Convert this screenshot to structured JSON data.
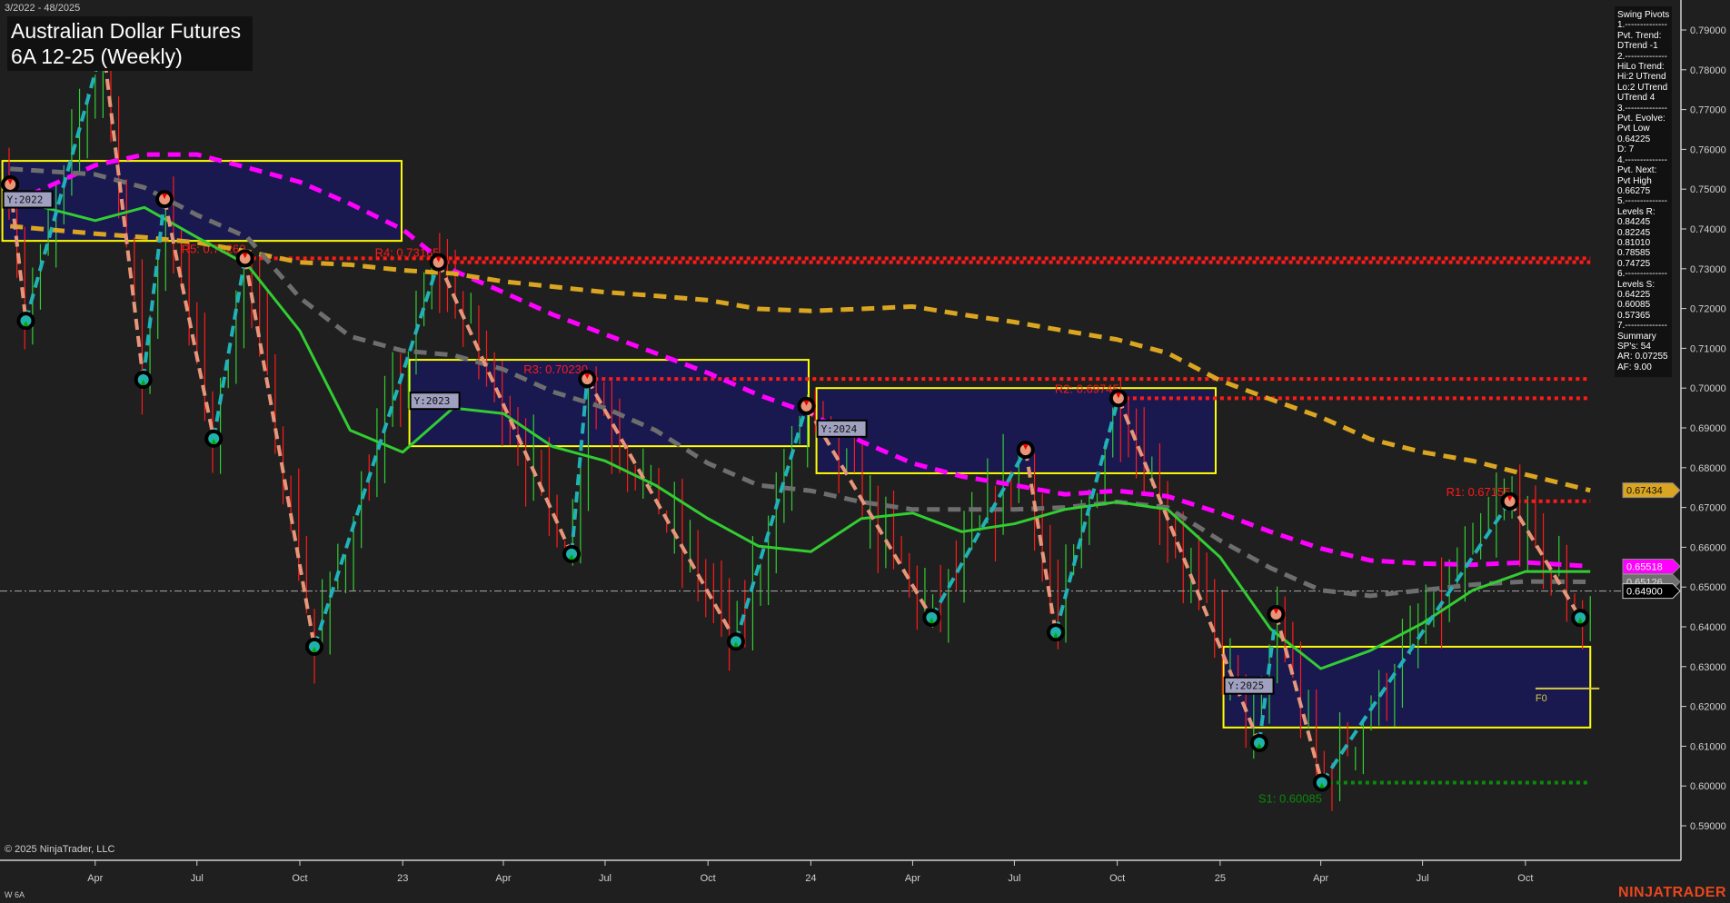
{
  "header": {
    "date_range": "3/2022 - 48/2025",
    "title_line1": "Australian Dollar Futures",
    "title_line2": "6A 12-25 (Weekly)"
  },
  "footer": {
    "copyright": "© 2025 NinjaTrader, LLC",
    "symbol": "W 6A",
    "logo": "NINJATRADER"
  },
  "info_panel": {
    "lines": [
      "Swing Pivots",
      "1.--------------",
      "Pvt. Trend:",
      "DTrend -1",
      "2.--------------",
      "HiLo Trend:",
      "Hi:2 UTrend",
      "Lo:2 UTrend",
      "UTrend 4",
      "3.--------------",
      "Pvt. Evolve:",
      "Pvt Low",
      "0.64225",
      "D: 7",
      "4.--------------",
      "Pvt. Next:",
      "Pvt High",
      "0.66275",
      "5.--------------",
      "Levels R:",
      "0.84245",
      "0.82245",
      "0.81010",
      "0.78585",
      "0.74725",
      "6.--------------",
      "Levels S:",
      "0.64225",
      "0.60085",
      "0.57365",
      "7.--------------",
      "Summary",
      "SP's: 54",
      "AR: 0.07255",
      "AF: 9.00"
    ]
  },
  "chart_data": {
    "type": "candlestick",
    "ylim": [
      0.584,
      0.7948
    ],
    "y_ticks": [
      "0.79000",
      "0.78000",
      "0.77000",
      "0.76000",
      "0.75000",
      "0.74000",
      "0.73000",
      "0.72000",
      "0.71000",
      "0.70000",
      "0.69000",
      "0.68000",
      "0.67000",
      "0.66000",
      "0.65000",
      "0.64000",
      "0.63000",
      "0.62000",
      "0.61000",
      "0.60000",
      "0.59000"
    ],
    "x_ticks": [
      {
        "date": "2022-04-01",
        "label": "Apr"
      },
      {
        "date": "2022-07-01",
        "label": "Jul"
      },
      {
        "date": "2022-10-01",
        "label": "Oct"
      },
      {
        "date": "2023-01-01",
        "label": "23"
      },
      {
        "date": "2023-04-01",
        "label": "Apr"
      },
      {
        "date": "2023-07-01",
        "label": "Jul"
      },
      {
        "date": "2023-10-01",
        "label": "Oct"
      },
      {
        "date": "2024-01-01",
        "label": "24"
      },
      {
        "date": "2024-04-01",
        "label": "Apr"
      },
      {
        "date": "2024-07-01",
        "label": "Jul"
      },
      {
        "date": "2024-10-01",
        "label": "Oct"
      },
      {
        "date": "2025-01-01",
        "label": "25"
      },
      {
        "date": "2025-04-01",
        "label": "Apr"
      },
      {
        "date": "2025-07-01",
        "label": "Jul"
      },
      {
        "date": "2025-10-01",
        "label": "Oct"
      }
    ],
    "swing_pivots": [
      {
        "date": "2022-01-15",
        "price": 0.7512,
        "type": "high"
      },
      {
        "date": "2022-01-29",
        "price": 0.7169,
        "type": "low"
      },
      {
        "date": "2022-04-08",
        "price": 0.7863,
        "type": "high"
      },
      {
        "date": "2022-05-14",
        "price": 0.7021,
        "type": "low"
      },
      {
        "date": "2022-06-02",
        "price": 0.7475,
        "type": "high"
      },
      {
        "date": "2022-07-16",
        "price": 0.6873,
        "type": "low"
      },
      {
        "date": "2022-08-13",
        "price": 0.7326,
        "type": "high"
      },
      {
        "date": "2022-10-14",
        "price": 0.635,
        "type": "low"
      },
      {
        "date": "2023-02-02",
        "price": 0.73165,
        "type": "high"
      },
      {
        "date": "2023-06-01",
        "price": 0.6583,
        "type": "low"
      },
      {
        "date": "2023-06-15",
        "price": 0.7023,
        "type": "high"
      },
      {
        "date": "2023-10-26",
        "price": 0.6363,
        "type": "low"
      },
      {
        "date": "2023-12-28",
        "price": 0.6955,
        "type": "high"
      },
      {
        "date": "2024-04-18",
        "price": 0.6423,
        "type": "low"
      },
      {
        "date": "2024-07-11",
        "price": 0.6845,
        "type": "high"
      },
      {
        "date": "2024-08-07",
        "price": 0.6386,
        "type": "low"
      },
      {
        "date": "2024-10-02",
        "price": 0.69745,
        "type": "high"
      },
      {
        "date": "2025-02-05",
        "price": 0.6108,
        "type": "low"
      },
      {
        "date": "2025-02-20",
        "price": 0.6432,
        "type": "high"
      },
      {
        "date": "2025-04-02",
        "price": 0.60085,
        "type": "low"
      },
      {
        "date": "2025-09-17",
        "price": 0.67155,
        "type": "high"
      },
      {
        "date": "2025-11-19",
        "price": 0.64225,
        "type": "low"
      }
    ],
    "levels": [
      {
        "label": "R5: 0.73260",
        "price": 0.7326,
        "from": "2022-08-13",
        "color": "#ff1a1a"
      },
      {
        "label": "R4: 0.73165",
        "price": 0.73165,
        "from": "2023-02-02",
        "color": "#ff1a1a"
      },
      {
        "label": "R3: 0.70230",
        "price": 0.7023,
        "from": "2023-06-15",
        "color": "#ff1a1a"
      },
      {
        "label": "R2: 0.69745",
        "price": 0.69745,
        "from": "2024-10-02",
        "color": "#ff1a1a"
      },
      {
        "label": "R1: 0.67155",
        "price": 0.67155,
        "from": "2025-09-17",
        "color": "#ff1a1a"
      },
      {
        "label": "S1: 0.60085",
        "price": 0.60085,
        "from": "2025-04-02",
        "color": "#0a8a0a"
      }
    ],
    "level_end": "2025-11-28",
    "year_boxes": [
      {
        "label": "Y:2022",
        "from": "2022-01-08",
        "to": "2022-12-31",
        "high": 0.7571,
        "low": 0.737
      },
      {
        "label": "Y:2023",
        "from": "2023-01-07",
        "to": "2023-12-30",
        "high": 0.7071,
        "low": 0.6854
      },
      {
        "label": "Y:2024",
        "from": "2024-01-06",
        "to": "2024-12-28",
        "high": 0.7,
        "low": 0.6786
      },
      {
        "label": "Y:2025",
        "from": "2025-01-04",
        "to": "2025-11-28",
        "high": 0.635,
        "low": 0.6147
      }
    ],
    "f0": {
      "label": "F0",
      "price": 0.6245,
      "from": "2025-10-10"
    },
    "last_price": {
      "value": 0.649,
      "label": "0.64900"
    },
    "ma_dates": [
      "2022-01-15",
      "2022-04-01",
      "2022-05-15",
      "2022-07-01",
      "2022-08-15",
      "2022-10-01",
      "2022-11-15",
      "2023-01-01",
      "2023-02-15",
      "2023-04-01",
      "2023-05-15",
      "2023-07-01",
      "2023-08-15",
      "2023-10-01",
      "2023-11-15",
      "2024-01-01",
      "2024-02-15",
      "2024-04-01",
      "2024-05-15",
      "2024-07-01",
      "2024-08-15",
      "2024-10-01",
      "2024-11-15",
      "2025-01-01",
      "2025-02-15",
      "2025-04-01",
      "2025-05-15",
      "2025-07-01",
      "2025-08-15",
      "2025-10-01",
      "2025-11-28"
    ],
    "moving_averages": [
      {
        "color": "#ff00ff",
        "style": "dashed",
        "tag": "0.65518",
        "values": [
          0.7463,
          0.756,
          0.7587,
          0.7587,
          0.7554,
          0.7518,
          0.7463,
          0.7399,
          0.7296,
          0.7241,
          0.7185,
          0.7135,
          0.7088,
          0.7038,
          0.6983,
          0.6936,
          0.6866,
          0.6811,
          0.6778,
          0.6756,
          0.6733,
          0.6742,
          0.6728,
          0.6686,
          0.6639,
          0.6597,
          0.6567,
          0.6559,
          0.6556,
          0.6562,
          0.6552
        ]
      },
      {
        "color": "#daa520",
        "style": "dashed",
        "tag": "0.67434",
        "values": [
          0.7407,
          0.7388,
          0.7379,
          0.7366,
          0.7343,
          0.7316,
          0.731,
          0.7296,
          0.7288,
          0.7268,
          0.7255,
          0.7241,
          0.7232,
          0.7221,
          0.7199,
          0.7194,
          0.7199,
          0.7205,
          0.7185,
          0.7166,
          0.7144,
          0.7122,
          0.7088,
          0.7019,
          0.6972,
          0.6927,
          0.6872,
          0.6839,
          0.6817,
          0.6783,
          0.6743
        ]
      },
      {
        "color": "#6e6e6e",
        "style": "dashed",
        "tag": "0.65126",
        "values": [
          0.7551,
          0.7537,
          0.7504,
          0.7435,
          0.7379,
          0.7227,
          0.713,
          0.7094,
          0.7083,
          0.7047,
          0.6991,
          0.695,
          0.6894,
          0.6811,
          0.6756,
          0.6742,
          0.6714,
          0.6695,
          0.6695,
          0.6695,
          0.67,
          0.6714,
          0.67,
          0.6617,
          0.6548,
          0.6492,
          0.6478,
          0.6492,
          0.6506,
          0.6514,
          0.6513
        ]
      },
      {
        "color": "#32cd32",
        "style": "solid",
        "values": [
          0.7476,
          0.7421,
          0.7454,
          0.7379,
          0.731,
          0.7144,
          0.6894,
          0.6839,
          0.695,
          0.6936,
          0.6853,
          0.6817,
          0.6756,
          0.6672,
          0.6603,
          0.6589,
          0.6672,
          0.6686,
          0.6639,
          0.6659,
          0.6695,
          0.6714,
          0.6695,
          0.6575,
          0.6395,
          0.6295,
          0.634,
          0.6409,
          0.6492,
          0.6539,
          0.6539
        ]
      }
    ],
    "colors": {
      "up_bar": "#32cd32",
      "down_bar": "#ff1a1a",
      "zigzag_up": "#20b2b8",
      "zigzag_down": "#e8967a",
      "box_fill": "#191950",
      "box_border": "#ffff00",
      "background": "#1f1f1f"
    }
  }
}
